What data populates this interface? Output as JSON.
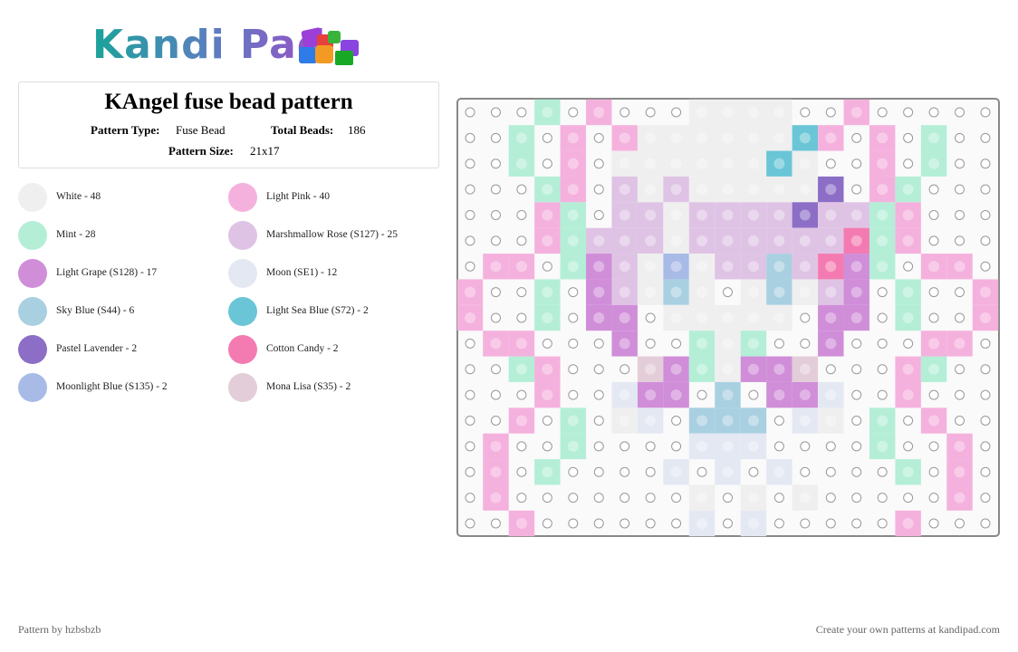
{
  "header": {
    "logo": "Kandi Pad"
  },
  "info": {
    "title": "KAngel fuse bead pattern",
    "type_label": "Pattern Type:",
    "type_value": "Fuse Bead",
    "beads_label": "Total Beads:",
    "beads_value": "186",
    "size_label": "Pattern Size:",
    "size_value": "21x17"
  },
  "legend": [
    {
      "label": "White - 48",
      "color": "#efefef"
    },
    {
      "label": "Light Pink - 40",
      "color": "#f5b1de"
    },
    {
      "label": "Mint - 28",
      "color": "#b4eed7"
    },
    {
      "label": "Marshmallow Rose (S127) - 25",
      "color": "#dfc3e5"
    },
    {
      "label": "Light Grape (S128) - 17",
      "color": "#d08ed9"
    },
    {
      "label": "Moon (SE1) - 12",
      "color": "#e4e8f3"
    },
    {
      "label": "Sky Blue (S44) - 6",
      "color": "#a9d0e1"
    },
    {
      "label": "Light Sea Blue (S72) - 2",
      "color": "#6ac6d6"
    },
    {
      "label": "Pastel Lavender - 2",
      "color": "#8c6ec6"
    },
    {
      "label": "Cotton Candy - 2",
      "color": "#f47bb1"
    },
    {
      "label": "Moonlight Blue (S135) - 2",
      "color": "#a8bbe7"
    },
    {
      "label": "Mona Lisa (S35) - 2",
      "color": "#e3cdd8"
    }
  ],
  "footer": {
    "left": "Pattern by hzbsbzb",
    "right": "Create your own patterns at kandipad.com"
  }
}
